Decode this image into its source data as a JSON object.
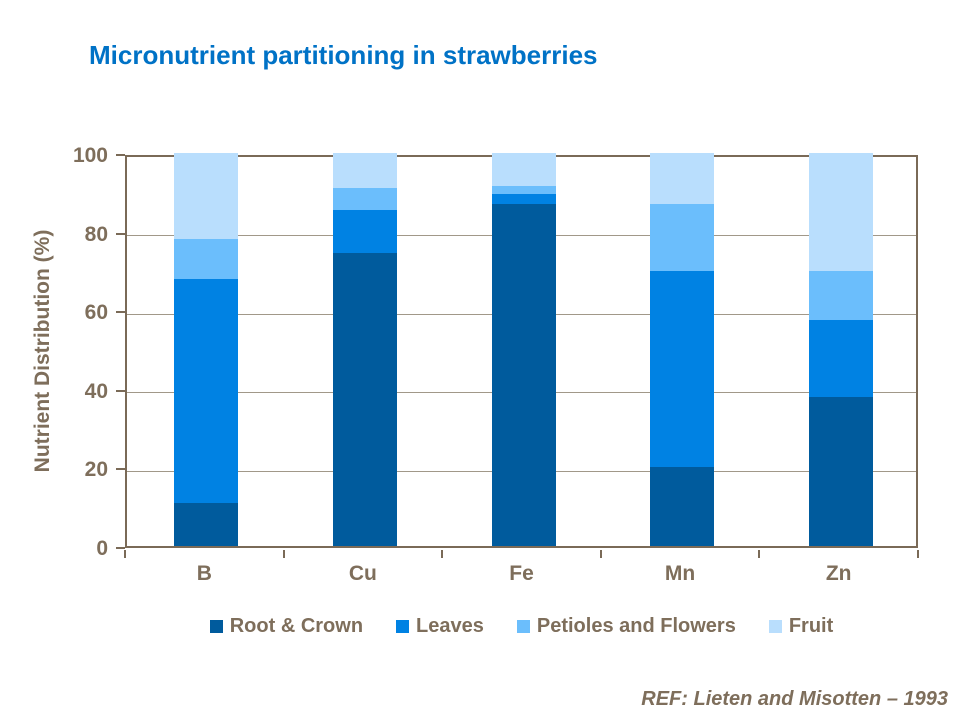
{
  "title": "Micronutrient partitioning in strawberries",
  "reference": "REF:  Lieten and Misotten – 1993",
  "colors": {
    "title": "#0072C6",
    "axis_text": "#7E6E5B",
    "frame": "#7A6A57",
    "gridline": "#A19889",
    "background": "#FFFFFF"
  },
  "chart_data": {
    "type": "bar",
    "stacked": true,
    "categories": [
      "B",
      "Cu",
      "Fe",
      "Mn",
      "Zn"
    ],
    "series": [
      {
        "name": "Root & Crown",
        "color": "#005B9D",
        "values": [
          11,
          74.5,
          87,
          20,
          38
        ]
      },
      {
        "name": "Leaves",
        "color": "#0082E3",
        "values": [
          57,
          11,
          2.5,
          50,
          19.5
        ]
      },
      {
        "name": "Petioles and Flowers",
        "color": "#6BBEFC",
        "values": [
          10,
          5.5,
          2,
          17,
          12.5
        ]
      },
      {
        "name": "Fruit",
        "color": "#B9DEFD",
        "values": [
          22,
          9,
          8.5,
          13,
          30
        ]
      }
    ],
    "ylabel": "Nutrient Distribution (%)",
    "ylim": [
      0,
      100
    ],
    "yticks": [
      0,
      20,
      40,
      60,
      80,
      100
    ],
    "grid": true,
    "legend_position": "bottom"
  }
}
